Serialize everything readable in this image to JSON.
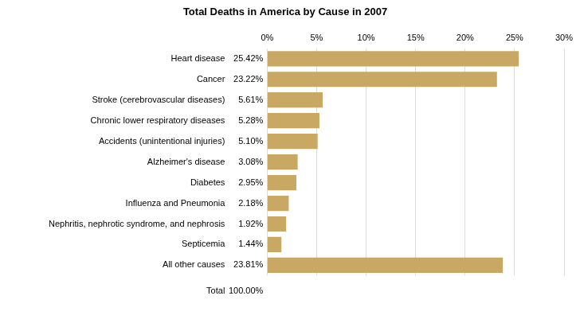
{
  "chart_data": {
    "type": "bar",
    "title": "Total Deaths in America by Cause in 2007",
    "orientation": "horizontal",
    "categories": [
      "Heart disease",
      "Cancer",
      "Stroke (cerebrovascular diseases)",
      "Chronic lower respiratory diseases",
      "Accidents (unintentional injuries)",
      "Alzheimer's disease",
      "Diabetes",
      "Influenza and Pneumonia",
      "Nephritis, nephrotic syndrome, and nephrosis",
      "Septicemia",
      "All other causes"
    ],
    "values": [
      25.42,
      23.22,
      5.61,
      5.28,
      5.1,
      3.08,
      2.95,
      2.18,
      1.92,
      1.44,
      23.81
    ],
    "value_labels": [
      "25.42%",
      "23.22%",
      "5.61%",
      "5.28%",
      "5.10%",
      "3.08%",
      "2.95%",
      "2.18%",
      "1.92%",
      "1.44%",
      "23.81%"
    ],
    "data_labels": true,
    "color": "#c8a862",
    "xlim": [
      0,
      30
    ],
    "xticks": [
      {
        "value": 0,
        "label": "0%"
      },
      {
        "value": 5,
        "label": "5%"
      },
      {
        "value": 10,
        "label": "10%"
      },
      {
        "value": 15,
        "label": "15%"
      },
      {
        "value": 20,
        "label": "20%"
      },
      {
        "value": 25,
        "label": "25%"
      },
      {
        "value": 30,
        "label": "30%"
      }
    ],
    "grid": true,
    "annotations": [
      "Total",
      "100.00%"
    ]
  }
}
